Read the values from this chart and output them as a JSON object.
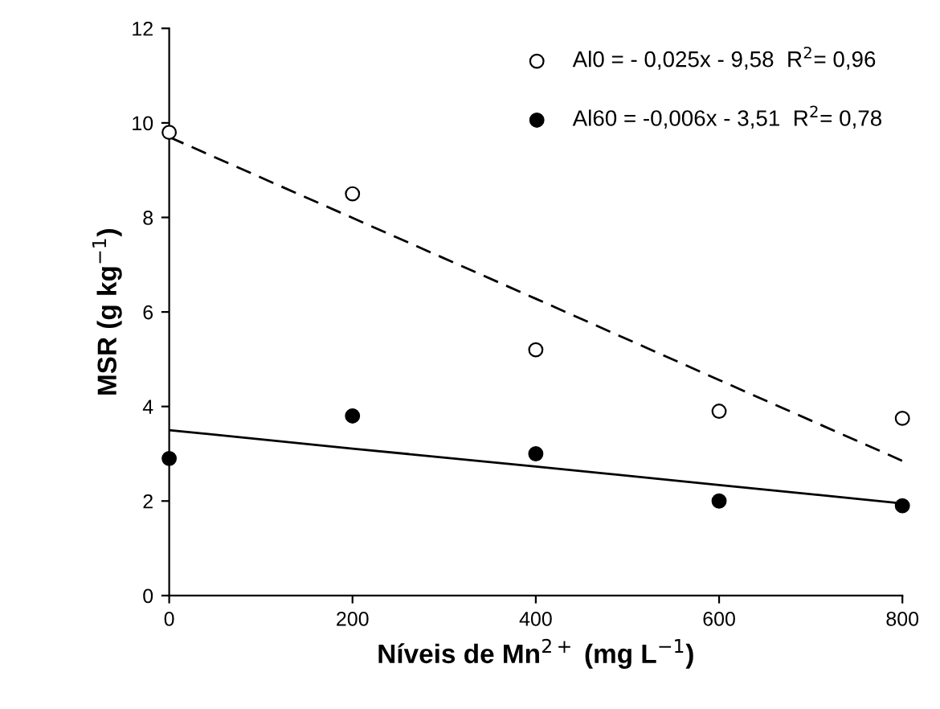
{
  "chart_data": {
    "type": "scatter",
    "xlabel": "Níveis de Mn$^{2+}$ (mg L$^{−1}$)",
    "ylabel": "MSR (g kg$^{−1}$)",
    "x": [
      0,
      200,
      400,
      600,
      800
    ],
    "series": [
      {
        "name": "Al0 = - 0,025x - 9,58  R$^{2}$= 0,96",
        "color": "#ffffff",
        "marker": "circle",
        "values": [
          9.8,
          8.5,
          5.2,
          3.9,
          3.75
        ]
      },
      {
        "name": "Al60 = -0,006x - 3,51  R$^{2}$= 0,78",
        "color": "#000000",
        "marker": "circle",
        "values": [
          2.9,
          3.8,
          3.0,
          2.0,
          1.9
        ]
      },
      {
        "type": "line",
        "values": [
          9.7,
          7.99,
          6.28,
          4.56,
          2.85
        ],
        "color": "#000000",
        "line_style": "dashed",
        "marker": "none"
      },
      {
        "type": "line",
        "values": [
          3.5,
          3.11,
          2.73,
          2.34,
          1.95
        ],
        "color": "#000000",
        "line_style": "solid",
        "marker": "none"
      }
    ],
    "xlim": [
      0,
      800
    ],
    "ylim": [
      0,
      12
    ],
    "xticks": [
      0,
      200,
      400,
      600,
      800
    ],
    "yticks": [
      0,
      2,
      4,
      6,
      8,
      10,
      12
    ],
    "grid": false,
    "legend": "top right"
  }
}
